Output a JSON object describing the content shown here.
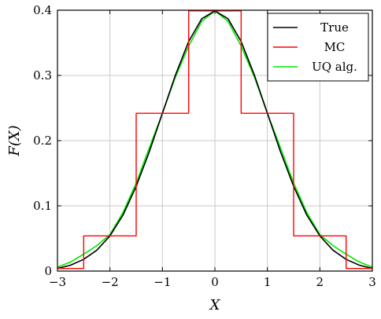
{
  "chart_data": {
    "type": "line",
    "xlabel": "X",
    "ylabel": "F(X)",
    "xlim": [
      -3,
      3
    ],
    "ylim": [
      0,
      0.4
    ],
    "xticks": [
      -3,
      -2,
      -1,
      0,
      1,
      2,
      3
    ],
    "xtick_labels": [
      "−3",
      "−2",
      "−1",
      "0",
      "1",
      "2",
      "3"
    ],
    "yticks": [
      0,
      0.1,
      0.2,
      0.3,
      0.4
    ],
    "ytick_labels": [
      "0",
      "0.1",
      "0.2",
      "0.3",
      "0.4"
    ],
    "grid": true,
    "legend_position": "top-right",
    "series": [
      {
        "name": "True",
        "color": "#000000",
        "x": [
          -3,
          -2.75,
          -2.5,
          -2.25,
          -2,
          -1.75,
          -1.5,
          -1.25,
          -1,
          -0.75,
          -0.5,
          -0.25,
          0,
          0.25,
          0.5,
          0.75,
          1,
          1.25,
          1.5,
          1.75,
          2,
          2.25,
          2.5,
          2.75,
          3
        ],
        "y": [
          0.004,
          0.009,
          0.018,
          0.032,
          0.054,
          0.086,
          0.13,
          0.183,
          0.242,
          0.301,
          0.352,
          0.387,
          0.399,
          0.387,
          0.352,
          0.301,
          0.242,
          0.183,
          0.13,
          0.086,
          0.054,
          0.032,
          0.018,
          0.009,
          0.004
        ]
      },
      {
        "name": "MC",
        "color": "#ff0000",
        "step": true,
        "x": [
          -3,
          -2.5,
          -2.5,
          -1.5,
          -1.5,
          -0.5,
          -0.5,
          0.5,
          0.5,
          1.5,
          1.5,
          2.5,
          2.5,
          3
        ],
        "y": [
          0.004,
          0.004,
          0.054,
          0.054,
          0.242,
          0.242,
          0.399,
          0.399,
          0.242,
          0.242,
          0.054,
          0.054,
          0.004,
          0.004
        ]
      },
      {
        "name": "UQ alg.",
        "color": "#00e600",
        "x": [
          -3,
          -2.75,
          -2.5,
          -2.25,
          -2,
          -1.75,
          -1.5,
          -1.25,
          -1,
          -0.75,
          -0.5,
          -0.25,
          0,
          0.25,
          0.5,
          0.75,
          1,
          1.25,
          1.5,
          1.75,
          2,
          2.25,
          2.5,
          2.75,
          3
        ],
        "y": [
          0.006,
          0.014,
          0.026,
          0.039,
          0.056,
          0.09,
          0.135,
          0.189,
          0.242,
          0.298,
          0.345,
          0.383,
          0.399,
          0.383,
          0.345,
          0.298,
          0.242,
          0.189,
          0.135,
          0.09,
          0.056,
          0.039,
          0.026,
          0.014,
          0.006
        ]
      }
    ]
  }
}
